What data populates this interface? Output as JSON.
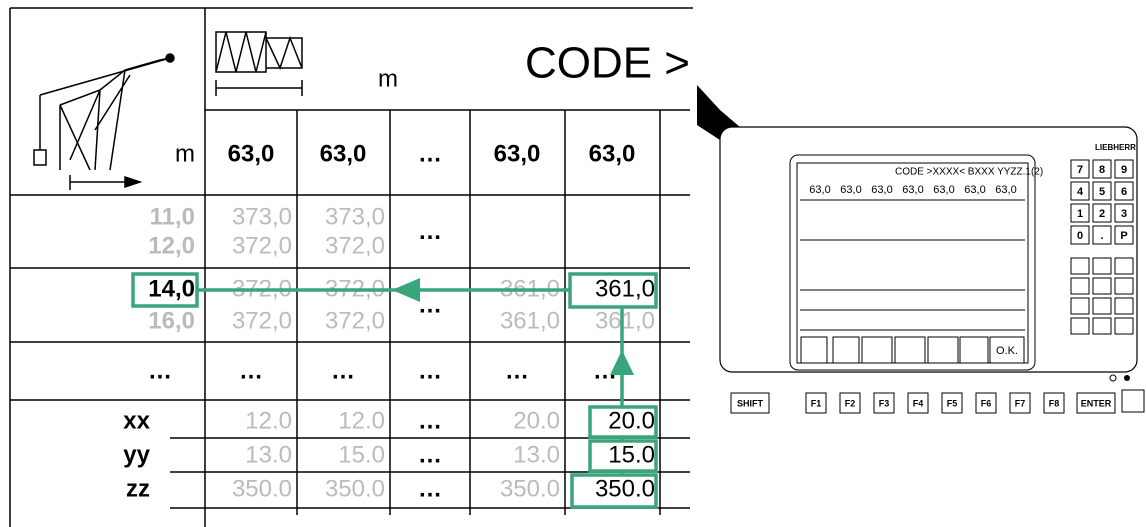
{
  "header": {
    "unit": "m",
    "code": "CODE >"
  },
  "boom_unit": "m",
  "lengths": [
    "63,0",
    "63,0",
    "…",
    "63,0",
    "63,0"
  ],
  "groups": [
    {
      "rows": [
        {
          "radius": "11,0",
          "cells": [
            "373,0",
            "373,0",
            null,
            null
          ]
        },
        {
          "radius": "12,0",
          "cells": [
            "372,0",
            "372,0",
            null,
            null
          ]
        }
      ],
      "ellipsis": "…"
    },
    {
      "rows": [
        {
          "radius": "14,0",
          "cells": [
            "372,0",
            "372,0",
            "361,0",
            "361,0"
          ]
        },
        {
          "radius": "16,0",
          "cells": [
            "372,0",
            "372,0",
            "361,0",
            "361,0"
          ]
        }
      ],
      "ellipsis": "…"
    }
  ],
  "ellipsis_row": [
    "…",
    "…",
    "…",
    "…",
    "…",
    "…"
  ],
  "params": [
    {
      "name": "xx",
      "values": [
        "12.0",
        "12.0",
        "…",
        "20.0",
        "20.0"
      ]
    },
    {
      "name": "yy",
      "values": [
        "13.0",
        "15.0",
        "…",
        "13.0",
        "15.0"
      ]
    },
    {
      "name": "zz",
      "values": [
        "350.0",
        "350.0",
        "…",
        "350.0",
        "350.0"
      ]
    }
  ],
  "device": {
    "brand": "LIEBHERR",
    "keypad": [
      "7",
      "8",
      "9",
      "4",
      "5",
      "6",
      "1",
      "2",
      "3",
      "0",
      ".",
      "P"
    ],
    "function_keys": [
      "SHIFT",
      "F1",
      "F2",
      "F3",
      "F4",
      "F5",
      "F6",
      "F7",
      "F8",
      "ENTER"
    ],
    "screen_code": "CODE >XXXX< BXXX YYZZ.1(2)",
    "screen_lengths": [
      "63,0",
      "63,0",
      "63,0",
      "63,0",
      "63,0",
      "63,0",
      "63,0"
    ],
    "screen_ok": "O.K."
  }
}
